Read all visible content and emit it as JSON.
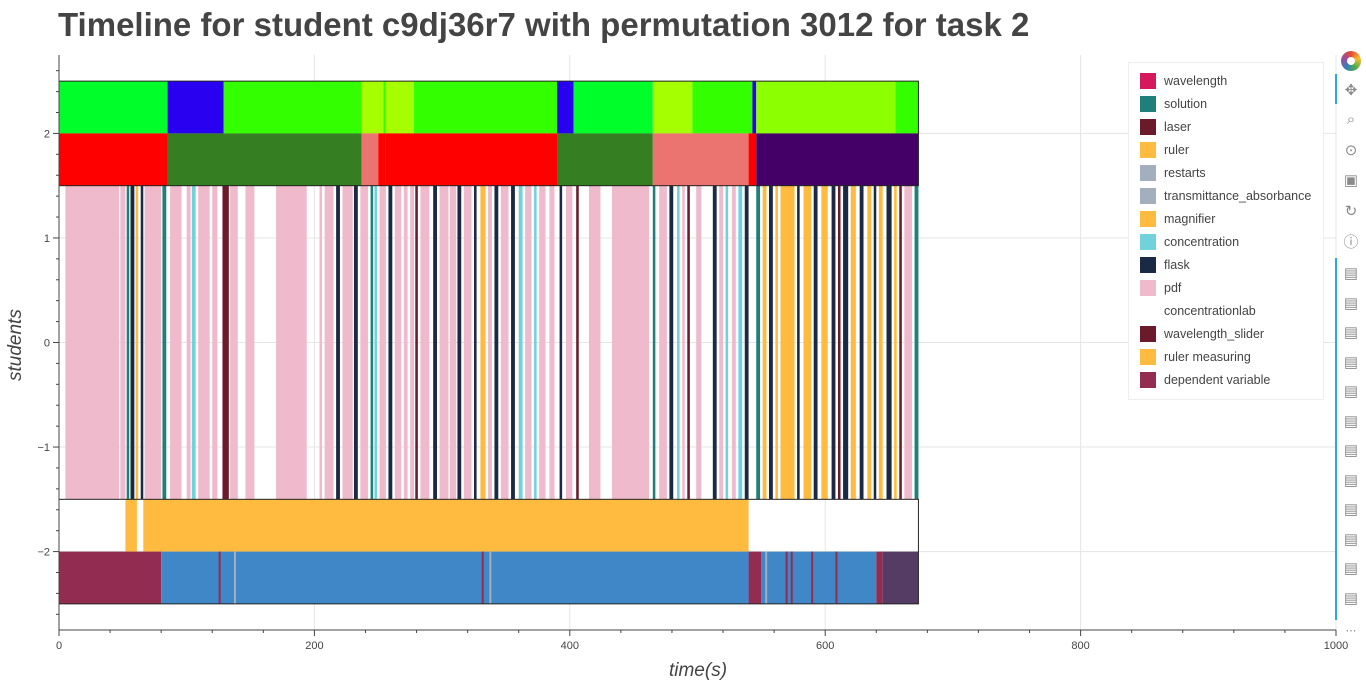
{
  "title": "Timeline for student c9dj36r7 with permutation 3012 for task 2",
  "chart_data": {
    "type": "timeline",
    "title": "Timeline for student c9dj36r7 with permutation 3012 for task 2",
    "xlabel": "time(s)",
    "ylabel": "students",
    "xlim": [
      0,
      1000
    ],
    "ylim": [
      -2.75,
      2.75
    ],
    "x_ticks": [
      0,
      200,
      400,
      600,
      800,
      1000
    ],
    "x_tick_labels": [
      "0",
      "200",
      "400",
      "600",
      "800",
      "1000"
    ],
    "y_ticks": [
      2,
      1,
      0,
      -1,
      -2
    ],
    "y_tick_labels": [
      "2",
      "1",
      "0",
      "−1",
      "−2"
    ],
    "grid": true,
    "legend_position": "top-right",
    "legend": [
      {
        "label": "wavelength",
        "color": "#d6195a"
      },
      {
        "label": "solution",
        "color": "#1f7f7a"
      },
      {
        "label": "laser",
        "color": "#6b1a2c"
      },
      {
        "label": "ruler",
        "color": "#ffbb40"
      },
      {
        "label": "restarts",
        "color": "#a3aebf"
      },
      {
        "label": "transmittance_absorbance",
        "color": "#a3aebf"
      },
      {
        "label": "magnifier",
        "color": "#ffbb40"
      },
      {
        "label": "concentration",
        "color": "#72d2dc"
      },
      {
        "label": "flask",
        "color": "#1b2a44"
      },
      {
        "label": "pdf",
        "color": "#efbacc"
      },
      {
        "label": "concentrationlab",
        "color": "#ffffff"
      },
      {
        "label": "wavelength_slider",
        "color": "#6b1a2c"
      },
      {
        "label": "ruler measuring",
        "color": "#ffbb40"
      },
      {
        "label": "dependent variable",
        "color": "#922c50"
      }
    ],
    "rows": [
      {
        "y_range": [
          2.0,
          2.5
        ],
        "segments": [
          {
            "start": 0,
            "end": 85,
            "color": "#00ff2a"
          },
          {
            "start": 85,
            "end": 129,
            "color": "#2a00f0"
          },
          {
            "start": 129,
            "end": 237,
            "color": "#33ff00"
          },
          {
            "start": 237,
            "end": 254,
            "color": "#a6ff00"
          },
          {
            "start": 254,
            "end": 256,
            "color": "#33ff00"
          },
          {
            "start": 256,
            "end": 278,
            "color": "#a6ff00"
          },
          {
            "start": 278,
            "end": 390,
            "color": "#33ff00"
          },
          {
            "start": 390,
            "end": 403,
            "color": "#2a00f0"
          },
          {
            "start": 403,
            "end": 465,
            "color": "#00ff2a"
          },
          {
            "start": 465,
            "end": 496,
            "color": "#a6ff00"
          },
          {
            "start": 496,
            "end": 543,
            "color": "#33ff00"
          },
          {
            "start": 543,
            "end": 546,
            "color": "#2a00f0"
          },
          {
            "start": 546,
            "end": 655,
            "color": "#8cff00"
          },
          {
            "start": 655,
            "end": 673,
            "color": "#33ff00"
          }
        ]
      },
      {
        "y_range": [
          1.5,
          2.0
        ],
        "segments": [
          {
            "start": 0,
            "end": 85,
            "color": "#ff0000"
          },
          {
            "start": 85,
            "end": 237,
            "color": "#367e22"
          },
          {
            "start": 237,
            "end": 250,
            "color": "#ec7470"
          },
          {
            "start": 250,
            "end": 256,
            "color": "#ff0000"
          },
          {
            "start": 256,
            "end": 390,
            "color": "#ff0000"
          },
          {
            "start": 390,
            "end": 465,
            "color": "#367e22"
          },
          {
            "start": 465,
            "end": 540,
            "color": "#ec7470"
          },
          {
            "start": 540,
            "end": 546,
            "color": "#ff0000"
          },
          {
            "start": 546,
            "end": 673,
            "color": "#440066"
          }
        ]
      },
      {
        "y_range": [
          -1.5,
          1.5
        ],
        "segments": [
          {
            "start": 5,
            "end": 47,
            "color": "#efbacc"
          },
          {
            "start": 48,
            "end": 52,
            "color": "#efbacc"
          },
          {
            "start": 53,
            "end": 55,
            "color": "#1f7f7a"
          },
          {
            "start": 56,
            "end": 59,
            "color": "#1b2a44"
          },
          {
            "start": 60,
            "end": 62,
            "color": "#ffbb40"
          },
          {
            "start": 64,
            "end": 66,
            "color": "#1b2a44"
          },
          {
            "start": 67,
            "end": 80,
            "color": "#efbacc"
          },
          {
            "start": 81,
            "end": 84,
            "color": "#1f7f7a"
          },
          {
            "start": 87,
            "end": 96,
            "color": "#efbacc"
          },
          {
            "start": 100,
            "end": 103,
            "color": "#efbacc"
          },
          {
            "start": 104,
            "end": 107,
            "color": "#72d2dc"
          },
          {
            "start": 109,
            "end": 118,
            "color": "#efbacc"
          },
          {
            "start": 120,
            "end": 124,
            "color": "#efbacc"
          },
          {
            "start": 128,
            "end": 133,
            "color": "#6b1a2c"
          },
          {
            "start": 134,
            "end": 140,
            "color": "#efbacc"
          },
          {
            "start": 146,
            "end": 153,
            "color": "#efbacc"
          },
          {
            "start": 170,
            "end": 194,
            "color": "#efbacc"
          },
          {
            "start": 204,
            "end": 206,
            "color": "#efbacc"
          },
          {
            "start": 208,
            "end": 215,
            "color": "#efbacc"
          },
          {
            "start": 217,
            "end": 220,
            "color": "#1b2a44"
          },
          {
            "start": 222,
            "end": 230,
            "color": "#efbacc"
          },
          {
            "start": 231,
            "end": 234,
            "color": "#1b2a44"
          },
          {
            "start": 236,
            "end": 242,
            "color": "#efbacc"
          },
          {
            "start": 244,
            "end": 246,
            "color": "#1f7f7a"
          },
          {
            "start": 247,
            "end": 249,
            "color": "#72d2dc"
          },
          {
            "start": 251,
            "end": 256,
            "color": "#efbacc"
          },
          {
            "start": 258,
            "end": 261,
            "color": "#1b2a44"
          },
          {
            "start": 263,
            "end": 268,
            "color": "#efbacc"
          },
          {
            "start": 270,
            "end": 273,
            "color": "#efbacc"
          },
          {
            "start": 275,
            "end": 278,
            "color": "#efbacc"
          },
          {
            "start": 279,
            "end": 281,
            "color": "#6b1a2c"
          },
          {
            "start": 283,
            "end": 290,
            "color": "#efbacc"
          },
          {
            "start": 293,
            "end": 296,
            "color": "#1b2a44"
          },
          {
            "start": 298,
            "end": 305,
            "color": "#efbacc"
          },
          {
            "start": 306,
            "end": 311,
            "color": "#efbacc"
          },
          {
            "start": 312,
            "end": 315,
            "color": "#1b2a44"
          },
          {
            "start": 317,
            "end": 323,
            "color": "#efbacc"
          },
          {
            "start": 325,
            "end": 327,
            "color": "#1b2a44"
          },
          {
            "start": 330,
            "end": 334,
            "color": "#ffbb40"
          },
          {
            "start": 336,
            "end": 339,
            "color": "#efbacc"
          },
          {
            "start": 341,
            "end": 344,
            "color": "#1b2a44"
          },
          {
            "start": 346,
            "end": 352,
            "color": "#efbacc"
          },
          {
            "start": 354,
            "end": 357,
            "color": "#1b2a44"
          },
          {
            "start": 360,
            "end": 363,
            "color": "#72d2dc"
          },
          {
            "start": 365,
            "end": 370,
            "color": "#efbacc"
          },
          {
            "start": 372,
            "end": 374,
            "color": "#72d2dc"
          },
          {
            "start": 376,
            "end": 381,
            "color": "#efbacc"
          },
          {
            "start": 384,
            "end": 388,
            "color": "#efbacc"
          },
          {
            "start": 392,
            "end": 394,
            "color": "#1b2a44"
          },
          {
            "start": 397,
            "end": 402,
            "color": "#efbacc"
          },
          {
            "start": 405,
            "end": 407,
            "color": "#6b1a2c"
          },
          {
            "start": 415,
            "end": 424,
            "color": "#efbacc"
          },
          {
            "start": 433,
            "end": 462,
            "color": "#efbacc"
          },
          {
            "start": 465,
            "end": 467,
            "color": "#1f7f7a"
          },
          {
            "start": 470,
            "end": 476,
            "color": "#efbacc"
          },
          {
            "start": 478,
            "end": 481,
            "color": "#1b2a44"
          },
          {
            "start": 484,
            "end": 486,
            "color": "#72d2dc"
          },
          {
            "start": 488,
            "end": 490,
            "color": "#efbacc"
          },
          {
            "start": 492,
            "end": 494,
            "color": "#6b1a2c"
          },
          {
            "start": 499,
            "end": 503,
            "color": "#efbacc"
          },
          {
            "start": 512,
            "end": 515,
            "color": "#1b2a44"
          },
          {
            "start": 517,
            "end": 520,
            "color": "#efbacc"
          },
          {
            "start": 522,
            "end": 524,
            "color": "#72d2dc"
          },
          {
            "start": 527,
            "end": 530,
            "color": "#efbacc"
          },
          {
            "start": 532,
            "end": 535,
            "color": "#72d2dc"
          },
          {
            "start": 537,
            "end": 540,
            "color": "#1b2a44"
          },
          {
            "start": 546,
            "end": 549,
            "color": "#1f7f7a"
          },
          {
            "start": 551,
            "end": 554,
            "color": "#ffbb40"
          },
          {
            "start": 556,
            "end": 559,
            "color": "#1b2a44"
          },
          {
            "start": 561,
            "end": 563,
            "color": "#ffbb40"
          },
          {
            "start": 565,
            "end": 576,
            "color": "#ffbb40"
          },
          {
            "start": 578,
            "end": 580,
            "color": "#1b2a44"
          },
          {
            "start": 583,
            "end": 589,
            "color": "#ffbb40"
          },
          {
            "start": 591,
            "end": 594,
            "color": "#1b2a44"
          },
          {
            "start": 597,
            "end": 602,
            "color": "#ffbb40"
          },
          {
            "start": 605,
            "end": 608,
            "color": "#1b2a44"
          },
          {
            "start": 610,
            "end": 612,
            "color": "#6b1a2c"
          },
          {
            "start": 614,
            "end": 618,
            "color": "#1b2a44"
          },
          {
            "start": 620,
            "end": 624,
            "color": "#ffbb40"
          },
          {
            "start": 627,
            "end": 630,
            "color": "#1b2a44"
          },
          {
            "start": 633,
            "end": 636,
            "color": "#ffbb40"
          },
          {
            "start": 638,
            "end": 640,
            "color": "#1b2a44"
          },
          {
            "start": 642,
            "end": 645,
            "color": "#ffbb40"
          },
          {
            "start": 648,
            "end": 652,
            "color": "#1b2a44"
          },
          {
            "start": 654,
            "end": 656,
            "color": "#ffbb40"
          },
          {
            "start": 658,
            "end": 660,
            "color": "#6b1a2c"
          },
          {
            "start": 662,
            "end": 668,
            "color": "#efbacc"
          },
          {
            "start": 670,
            "end": 673,
            "color": "#1f7f7a"
          }
        ]
      },
      {
        "y_range": [
          -2.0,
          -1.5
        ],
        "segments": [
          {
            "start": 52,
            "end": 61,
            "color": "#ffbb40"
          },
          {
            "start": 66,
            "end": 540,
            "color": "#ffbb40"
          }
        ]
      },
      {
        "y_range": [
          -2.5,
          -2.0
        ],
        "segments": [
          {
            "start": 0,
            "end": 80,
            "color": "#922c50"
          },
          {
            "start": 80,
            "end": 540,
            "color": "#3f87c6"
          },
          {
            "start": 540,
            "end": 550,
            "color": "#922c50"
          },
          {
            "start": 550,
            "end": 640,
            "color": "#3f87c6"
          },
          {
            "start": 640,
            "end": 645,
            "color": "#922c50"
          },
          {
            "start": 645,
            "end": 673,
            "color": "#553c64"
          }
        ],
        "thin_marks": [
          {
            "x": 125,
            "color": "#922c50"
          },
          {
            "x": 137,
            "color": "#a3aebf"
          },
          {
            "x": 331,
            "color": "#922c50"
          },
          {
            "x": 337,
            "color": "#a3aebf"
          },
          {
            "x": 553,
            "color": "#a3aebf"
          },
          {
            "x": 569,
            "color": "#922c50"
          },
          {
            "x": 573,
            "color": "#922c50"
          },
          {
            "x": 589,
            "color": "#922c50"
          },
          {
            "x": 608,
            "color": "#922c50"
          }
        ]
      }
    ],
    "extent": [
      0,
      673
    ]
  },
  "toolbar": {
    "tools": [
      {
        "name": "bokeh-logo-icon"
      },
      {
        "name": "pan-icon"
      },
      {
        "name": "box-zoom-icon"
      },
      {
        "name": "wheel-zoom-icon"
      },
      {
        "name": "save-icon"
      },
      {
        "name": "reset-icon"
      },
      {
        "name": "help-icon"
      },
      {
        "name": "hover-icon"
      }
    ],
    "more_label": "⋯"
  }
}
